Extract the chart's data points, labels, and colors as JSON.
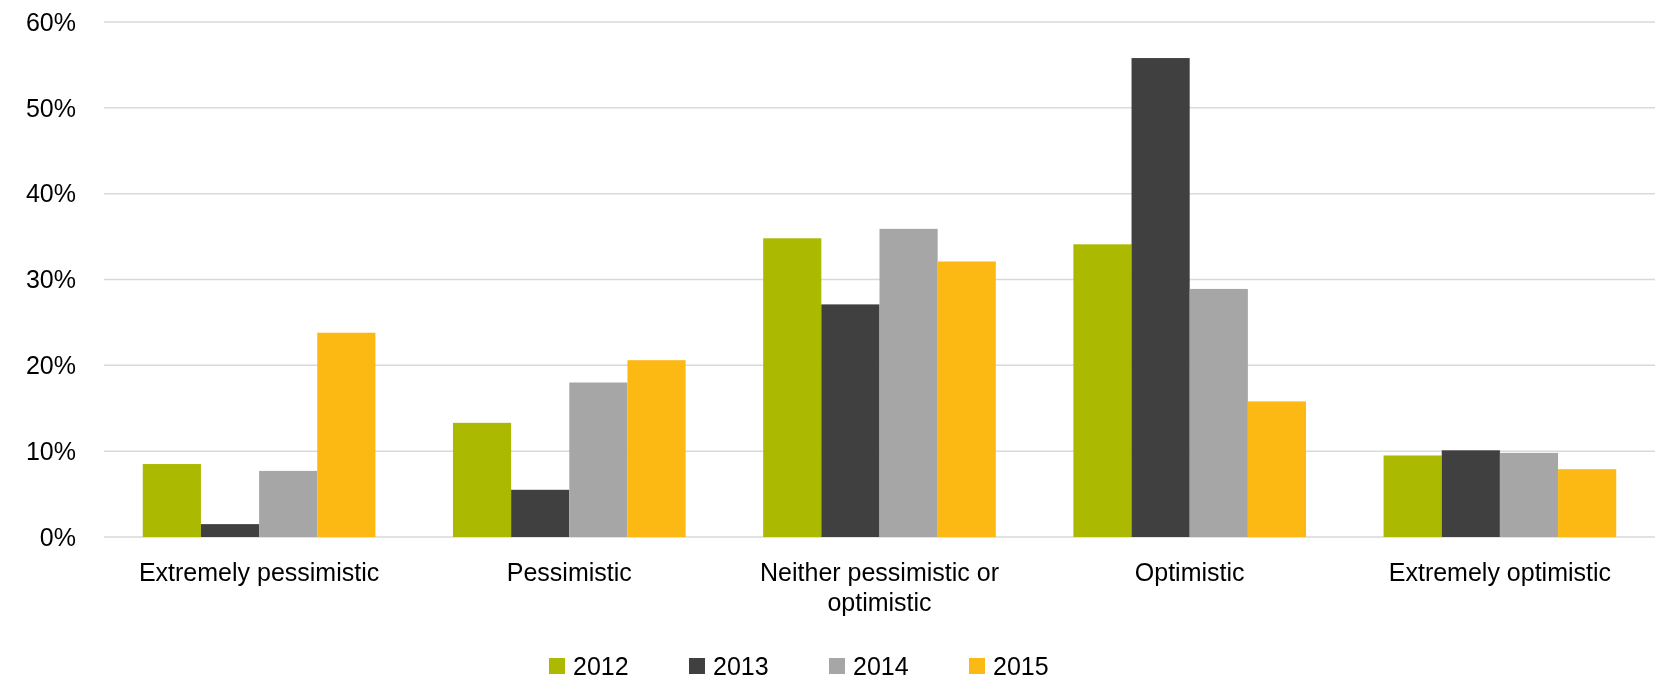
{
  "chart_data": {
    "type": "bar",
    "categories": [
      "Extremely pessimistic",
      "Pessimistic",
      "Neither pessimistic or optimistic",
      "Optimistic",
      "Extremely optimistic"
    ],
    "series": [
      {
        "name": "2012",
        "color": "#abb900",
        "values": [
          8.5,
          13.3,
          34.8,
          34.1,
          9.5
        ]
      },
      {
        "name": "2013",
        "color": "#404040",
        "values": [
          1.5,
          5.5,
          27.1,
          55.8,
          10.1
        ]
      },
      {
        "name": "2014",
        "color": "#a6a6a6",
        "values": [
          7.7,
          18,
          35.9,
          28.9,
          9.8
        ]
      },
      {
        "name": "2015",
        "color": "#fdb913",
        "values": [
          23.8,
          20.6,
          32.1,
          15.8,
          7.9
        ]
      }
    ],
    "ylim": [
      0,
      60
    ],
    "yticks": [
      {
        "value": 0,
        "label": "0%"
      },
      {
        "value": 10,
        "label": "10%"
      },
      {
        "value": 20,
        "label": "20%"
      },
      {
        "value": 30,
        "label": "30%"
      },
      {
        "value": 40,
        "label": "40%"
      },
      {
        "value": 50,
        "label": "50%"
      },
      {
        "value": 60,
        "label": "60%"
      }
    ],
    "grid": "y",
    "legend": "bottom"
  }
}
